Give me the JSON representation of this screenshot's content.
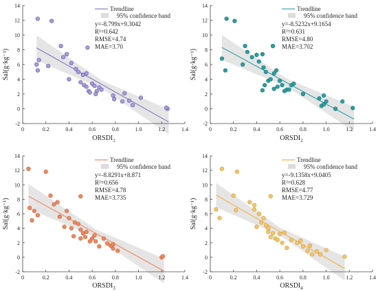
{
  "chart_data": [
    {
      "type": "scatter",
      "xlabel": "ORSDI",
      "xlabel_sub": "1",
      "ylabel": "Sal(g·kg⁻¹)",
      "xlim": [
        0,
        1.4
      ],
      "ylim": [
        -2,
        14
      ],
      "xticks": [
        "0",
        "0.2",
        "0.4",
        "0.6",
        "0.8",
        "1.0",
        "1.2",
        "1.4"
      ],
      "yticks": [
        "-2",
        "0",
        "2",
        "4",
        "6",
        "8",
        "10",
        "12",
        "14"
      ],
      "legend": [
        "Trendline",
        "95% confidence band"
      ],
      "stats": [
        "y=-8.799x+9.3042",
        "R²=0.642",
        "RMSE=4.74",
        "MAE=3.70"
      ],
      "trendline": {
        "slope": -8.799,
        "intercept": 9.3042,
        "x_range": [
          0.12,
          1.26
        ]
      },
      "colors": {
        "point": "#a89cd8",
        "point_edge": "#5e4fa8",
        "line": "#8a80c0"
      },
      "points": [
        [
          0.13,
          12.2
        ],
        [
          0.25,
          11.9
        ],
        [
          0.12,
          6.0
        ],
        [
          0.14,
          6.6
        ],
        [
          0.13,
          5.2
        ],
        [
          0.22,
          5.8
        ],
        [
          0.33,
          8.5
        ],
        [
          0.38,
          7.4
        ],
        [
          0.35,
          7.0
        ],
        [
          0.42,
          6.2
        ],
        [
          0.4,
          4.0
        ],
        [
          0.46,
          5.4
        ],
        [
          0.48,
          5.0
        ],
        [
          0.52,
          4.6
        ],
        [
          0.55,
          4.8
        ],
        [
          0.56,
          8.3
        ],
        [
          0.5,
          3.6
        ],
        [
          0.53,
          3.2
        ],
        [
          0.55,
          3.0
        ],
        [
          0.57,
          2.4
        ],
        [
          0.6,
          3.4
        ],
        [
          0.62,
          3.1
        ],
        [
          0.64,
          2.4
        ],
        [
          0.66,
          2.9
        ],
        [
          0.68,
          2.6
        ],
        [
          0.63,
          2.0
        ],
        [
          0.58,
          2.2
        ],
        [
          0.78,
          1.8
        ],
        [
          0.79,
          1.3
        ],
        [
          0.86,
          1.0
        ],
        [
          0.88,
          2.1
        ],
        [
          0.92,
          1.1
        ],
        [
          0.95,
          0.5
        ],
        [
          1.02,
          1.5
        ],
        [
          1.25,
          0.0
        ],
        [
          1.24,
          0.15
        ]
      ]
    },
    {
      "type": "scatter",
      "xlabel": "ORSDI",
      "xlabel_sub": "2",
      "ylabel": "Sal(g·kg⁻¹)",
      "xlim": [
        0,
        1.4
      ],
      "ylim": [
        -2,
        14
      ],
      "xticks": [
        "0",
        "0.2",
        "0.4",
        "0.6",
        "0.8",
        "1.0",
        "1.2",
        "1.4"
      ],
      "yticks": [
        "-2",
        "0",
        "2",
        "4",
        "6",
        "8",
        "10",
        "12",
        "14"
      ],
      "legend": [
        "Trendline",
        "95% confidence band"
      ],
      "stats": [
        "y=-8.5232x+9.1654",
        "R²=0.631",
        "RMSE=4.80",
        "MAE=3.702"
      ],
      "trendline": {
        "slope": -8.5232,
        "intercept": 9.1654,
        "x_range": [
          0.1,
          1.24
        ]
      },
      "colors": {
        "point": "#2a9fa3",
        "point_edge": "#1d6f72",
        "line": "#3aa6a8"
      },
      "points": [
        [
          0.14,
          12.2
        ],
        [
          0.21,
          11.9
        ],
        [
          0.1,
          6.8
        ],
        [
          0.13,
          5.2
        ],
        [
          0.3,
          8.5
        ],
        [
          0.32,
          7.7
        ],
        [
          0.36,
          7.0
        ],
        [
          0.4,
          7.3
        ],
        [
          0.28,
          6.0
        ],
        [
          0.42,
          6.4
        ],
        [
          0.45,
          7.4
        ],
        [
          0.46,
          5.6
        ],
        [
          0.48,
          5.0
        ],
        [
          0.5,
          3.8
        ],
        [
          0.47,
          3.2
        ],
        [
          0.52,
          4.0
        ],
        [
          0.54,
          8.5
        ],
        [
          0.55,
          4.8
        ],
        [
          0.57,
          5.2
        ],
        [
          0.6,
          3.8
        ],
        [
          0.58,
          3.0
        ],
        [
          0.62,
          3.2
        ],
        [
          0.64,
          2.4
        ],
        [
          0.66,
          2.6
        ],
        [
          0.68,
          2.6
        ],
        [
          0.7,
          3.2
        ],
        [
          0.72,
          3.4
        ],
        [
          0.55,
          2.7
        ],
        [
          0.45,
          2.5
        ],
        [
          0.8,
          2.0
        ],
        [
          0.94,
          1.4
        ],
        [
          0.96,
          0.4
        ],
        [
          0.98,
          0.6
        ],
        [
          0.98,
          1.8
        ],
        [
          1.0,
          1.0
        ],
        [
          1.08,
          0.0
        ],
        [
          1.14,
          1.0
        ],
        [
          1.23,
          0.1
        ]
      ]
    },
    {
      "type": "scatter",
      "xlabel": "ORSDI",
      "xlabel_sub": "3",
      "ylabel": "Sal(g·kg⁻¹)",
      "xlim": [
        0,
        1.4
      ],
      "ylim": [
        -2,
        14
      ],
      "xticks": [
        "0",
        "0.2",
        "0.4",
        "0.6",
        "0.8",
        "1.0",
        "1.2",
        "1.4"
      ],
      "yticks": [
        "-2",
        "0",
        "2",
        "4",
        "6",
        "8",
        "10",
        "12",
        "14"
      ],
      "legend": [
        "Trendline",
        "95% confidence band"
      ],
      "stats": [
        "y=-8.8291x+8.871",
        "R²=0.656",
        "RMSE=4.78",
        "MAE=3.735"
      ],
      "trendline": {
        "slope": -8.8291,
        "intercept": 8.871,
        "x_range": [
          0.05,
          1.22
        ]
      },
      "colors": {
        "point": "#ee8a5e",
        "point_edge": "#c15a30",
        "line": "#f08a66"
      },
      "points": [
        [
          0.05,
          12.2
        ],
        [
          0.2,
          11.8
        ],
        [
          0.06,
          6.8
        ],
        [
          0.08,
          5.1
        ],
        [
          0.1,
          6.4
        ],
        [
          0.13,
          5.8
        ],
        [
          0.24,
          8.5
        ],
        [
          0.27,
          7.3
        ],
        [
          0.3,
          7.6
        ],
        [
          0.32,
          5.6
        ],
        [
          0.36,
          4.2
        ],
        [
          0.38,
          6.4
        ],
        [
          0.4,
          5.4
        ],
        [
          0.42,
          4.0
        ],
        [
          0.45,
          4.8
        ],
        [
          0.48,
          4.6
        ],
        [
          0.5,
          8.4
        ],
        [
          0.5,
          3.8
        ],
        [
          0.52,
          3.3
        ],
        [
          0.54,
          2.8
        ],
        [
          0.55,
          3.5
        ],
        [
          0.58,
          2.2
        ],
        [
          0.6,
          2.6
        ],
        [
          0.62,
          3.0
        ],
        [
          0.63,
          2.2
        ],
        [
          0.66,
          1.5
        ],
        [
          0.7,
          2.6
        ],
        [
          0.73,
          1.9
        ],
        [
          0.76,
          1.6
        ],
        [
          0.78,
          1.2
        ],
        [
          0.78,
          1.8
        ],
        [
          0.82,
          0.9
        ],
        [
          0.5,
          2.6
        ],
        [
          0.44,
          2.9
        ],
        [
          1.2,
          0.0
        ],
        [
          1.21,
          0.15
        ]
      ]
    },
    {
      "type": "scatter",
      "xlabel": "ORSDI",
      "xlabel_sub": "4",
      "ylabel": "Sal(g·kg⁻¹)",
      "xlim": [
        0,
        1.4
      ],
      "ylim": [
        -2,
        14
      ],
      "xticks": [
        "0",
        "0.2",
        "0.4",
        "0.6",
        "0.8",
        "1.0",
        "1.2",
        "1.4"
      ],
      "yticks": [
        "-2",
        "0",
        "2",
        "4",
        "6",
        "8",
        "10",
        "12",
        "14"
      ],
      "legend": [
        "Trendline",
        "95% confidence band"
      ],
      "stats": [
        "y=-9.1358x+9.0405",
        "R²=0.628",
        "RMSE=4.77",
        "MAE=3.729"
      ],
      "trendline": {
        "slope": -9.1358,
        "intercept": 9.0405,
        "x_range": [
          0.05,
          1.16
        ]
      },
      "colors": {
        "point": "#f6c56a",
        "point_edge": "#c89a32",
        "line": "#f3b24d"
      },
      "points": [
        [
          0.1,
          12.2
        ],
        [
          0.23,
          11.8
        ],
        [
          0.05,
          6.6
        ],
        [
          0.08,
          5.4
        ],
        [
          0.2,
          8.5
        ],
        [
          0.22,
          6.5
        ],
        [
          0.34,
          7.6
        ],
        [
          0.38,
          7.2
        ],
        [
          0.38,
          6.6
        ],
        [
          0.42,
          6.0
        ],
        [
          0.44,
          4.8
        ],
        [
          0.46,
          5.4
        ],
        [
          0.48,
          4.4
        ],
        [
          0.5,
          4.0
        ],
        [
          0.52,
          8.4
        ],
        [
          0.5,
          3.5
        ],
        [
          0.52,
          2.8
        ],
        [
          0.54,
          3.3
        ],
        [
          0.56,
          2.6
        ],
        [
          0.58,
          2.4
        ],
        [
          0.6,
          3.2
        ],
        [
          0.62,
          2.0
        ],
        [
          0.64,
          3.4
        ],
        [
          0.66,
          1.3
        ],
        [
          0.7,
          2.4
        ],
        [
          0.75,
          2.0
        ],
        [
          0.78,
          2.3
        ],
        [
          0.8,
          1.5
        ],
        [
          0.84,
          0.9
        ],
        [
          0.86,
          1.6
        ],
        [
          0.88,
          0.4
        ],
        [
          0.92,
          0.8
        ],
        [
          0.95,
          0.4
        ],
        [
          1.0,
          1.0
        ],
        [
          0.4,
          4.2
        ],
        [
          1.16,
          0.1
        ]
      ]
    }
  ]
}
